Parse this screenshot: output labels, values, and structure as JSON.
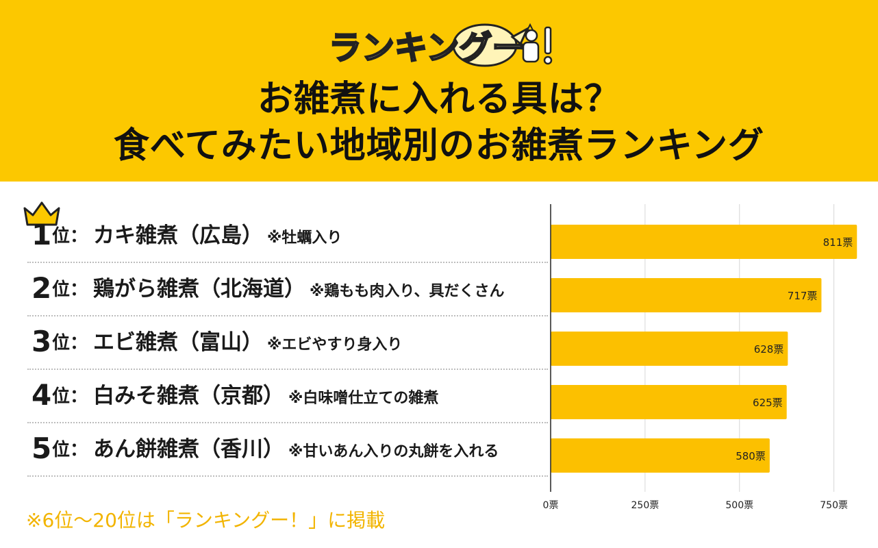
{
  "header": {
    "logo_text": "ランキングー！",
    "title_line1": "お雑煮に入れる具は？",
    "title_line2": "食べてみたい地域別のお雑煮ランキング"
  },
  "ranking": [
    {
      "num": "1",
      "suffix": "位：",
      "name": "カキ雑煮（広島）",
      "note": "※牡蠣入り"
    },
    {
      "num": "2",
      "suffix": "位：",
      "name": "鶏がら雑煮（北海道）",
      "note": "※鶏もも肉入り、具だくさん"
    },
    {
      "num": "3",
      "suffix": "位：",
      "name": "エビ雑煮（富山）",
      "note": "※エビやすり身入り"
    },
    {
      "num": "4",
      "suffix": "位：",
      "name": "白みそ雑煮（京都）",
      "note": "※白味噌仕立ての雑煮"
    },
    {
      "num": "5",
      "suffix": "位：",
      "name": "あん餅雑煮（香川）",
      "note": "※甘いあん入りの丸餅を入れる"
    }
  ],
  "footnote": "※6位〜20位は「ランキングー！」に掲載",
  "chart_data": {
    "type": "bar",
    "orientation": "horizontal",
    "categories": [
      "カキ雑煮（広島）",
      "鶏がら雑煮（北海道）",
      "エビ雑煮（富山）",
      "白みそ雑煮（京都）",
      "あん餅雑煮（香川）"
    ],
    "values": [
      811,
      717,
      628,
      625,
      580
    ],
    "value_labels": [
      "811票",
      "717票",
      "628票",
      "625票",
      "580票"
    ],
    "xlim": [
      0,
      810
    ],
    "xticks": [
      0,
      250,
      500,
      750
    ],
    "xtick_labels": [
      "0票",
      "250票",
      "500票",
      "750票"
    ],
    "grid": true,
    "bar_color": "#fcc000"
  }
}
